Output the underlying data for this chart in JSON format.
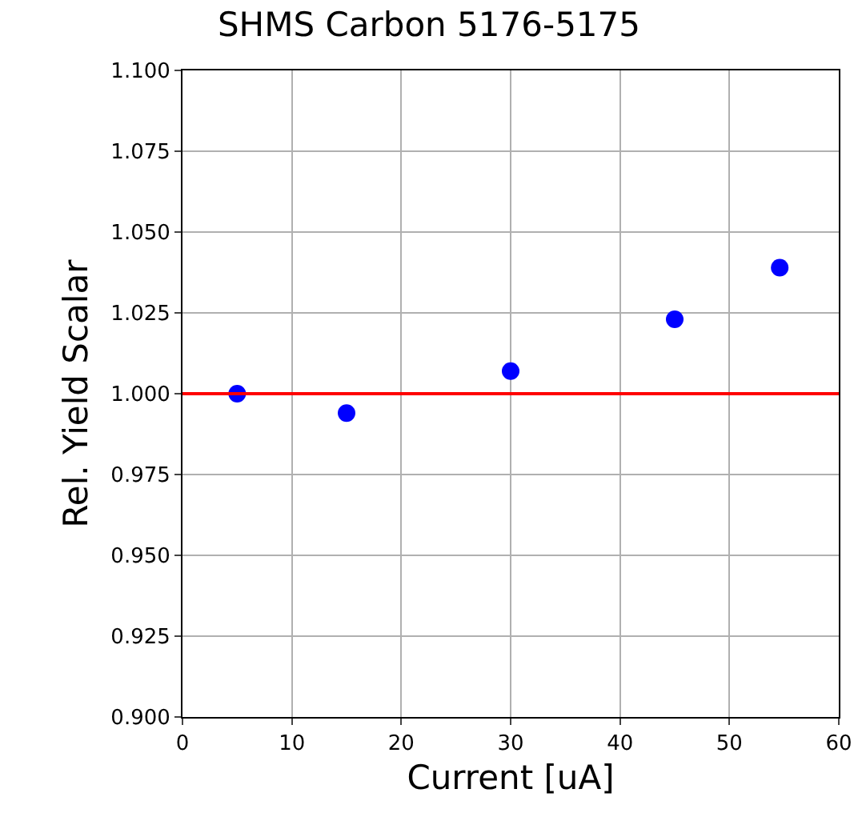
{
  "chart_data": {
    "type": "scatter",
    "title": "SHMS Carbon 5176-5175",
    "xlabel": "Current [uA]",
    "ylabel": "Rel. Yield Scalar",
    "x": [
      5,
      15,
      30,
      45,
      54.6
    ],
    "series": [
      {
        "color": "#0000ff",
        "values": [
          1.0,
          0.994,
          1.007,
          1.023,
          1.039
        ]
      }
    ],
    "xlim": [
      0,
      60
    ],
    "xticks": [
      0,
      10,
      20,
      30,
      40,
      50,
      60
    ],
    "ylim": [
      0.9,
      1.1
    ],
    "yticks": [
      {
        "value": 0.9,
        "label": "0.900"
      },
      {
        "value": 0.925,
        "label": "0.925"
      },
      {
        "value": 0.95,
        "label": "0.950"
      },
      {
        "value": 0.975,
        "label": "0.975"
      },
      {
        "value": 1.0,
        "label": "1.000"
      },
      {
        "value": 1.025,
        "label": "1.025"
      },
      {
        "value": 1.05,
        "label": "1.050"
      },
      {
        "value": 1.075,
        "label": "1.075"
      },
      {
        "value": 1.1,
        "label": "1.100"
      }
    ],
    "ref_lines": [
      {
        "axis": "y",
        "value": 1.0,
        "color": "#ff0000"
      }
    ],
    "grid": true,
    "marker": "circle"
  }
}
